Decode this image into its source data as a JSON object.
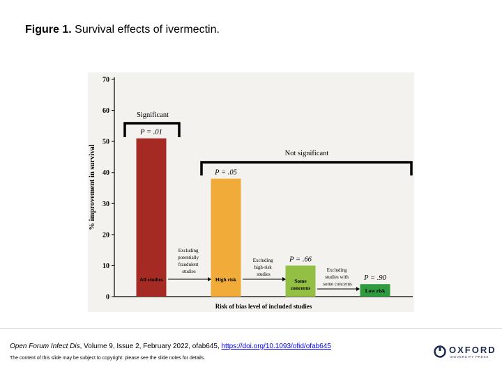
{
  "figure": {
    "label": "Figure 1.",
    "caption": "Survival effects of ivermectin."
  },
  "chart_data": {
    "type": "bar",
    "title": "",
    "ylabel": "% improvement in survival",
    "xlabel": "Risk of bias level of included studies",
    "ylim": [
      0,
      70
    ],
    "yticks": [
      0,
      10,
      20,
      30,
      40,
      50,
      60,
      70
    ],
    "categories": [
      "All studies",
      "High risk",
      "Some concerns",
      "Low risk"
    ],
    "values": [
      51,
      38,
      10,
      4
    ],
    "p_values": [
      "P = .01",
      "P = .05",
      "P = .66",
      "P = .90"
    ],
    "bar_colors": [
      "#a52a23",
      "#f0ab38",
      "#93bf45",
      "#2f9b3f"
    ],
    "transitions": [
      "Excluding potentially fraudulent studies",
      "Excluding high-risk studies",
      "Excluding studies with some concerns"
    ],
    "brackets": [
      {
        "label": "Significant",
        "covers": [
          "All studies"
        ]
      },
      {
        "label": "Not significant",
        "covers": [
          "High risk",
          "Some concerns",
          "Low risk"
        ]
      }
    ]
  },
  "footer": {
    "journal": "Open Forum Infect Dis",
    "citation_rest": ", Volume 9, Issue 2, February 2022, ofab645, ",
    "doi_link": "https://doi.org/10.1093/ofid/ofab645",
    "copyright": "The content of this slide may be subject to copyright: please see the slide notes for details.",
    "publisher_name": "OXFORD",
    "publisher_sub": "UNIVERSITY PRESS"
  }
}
